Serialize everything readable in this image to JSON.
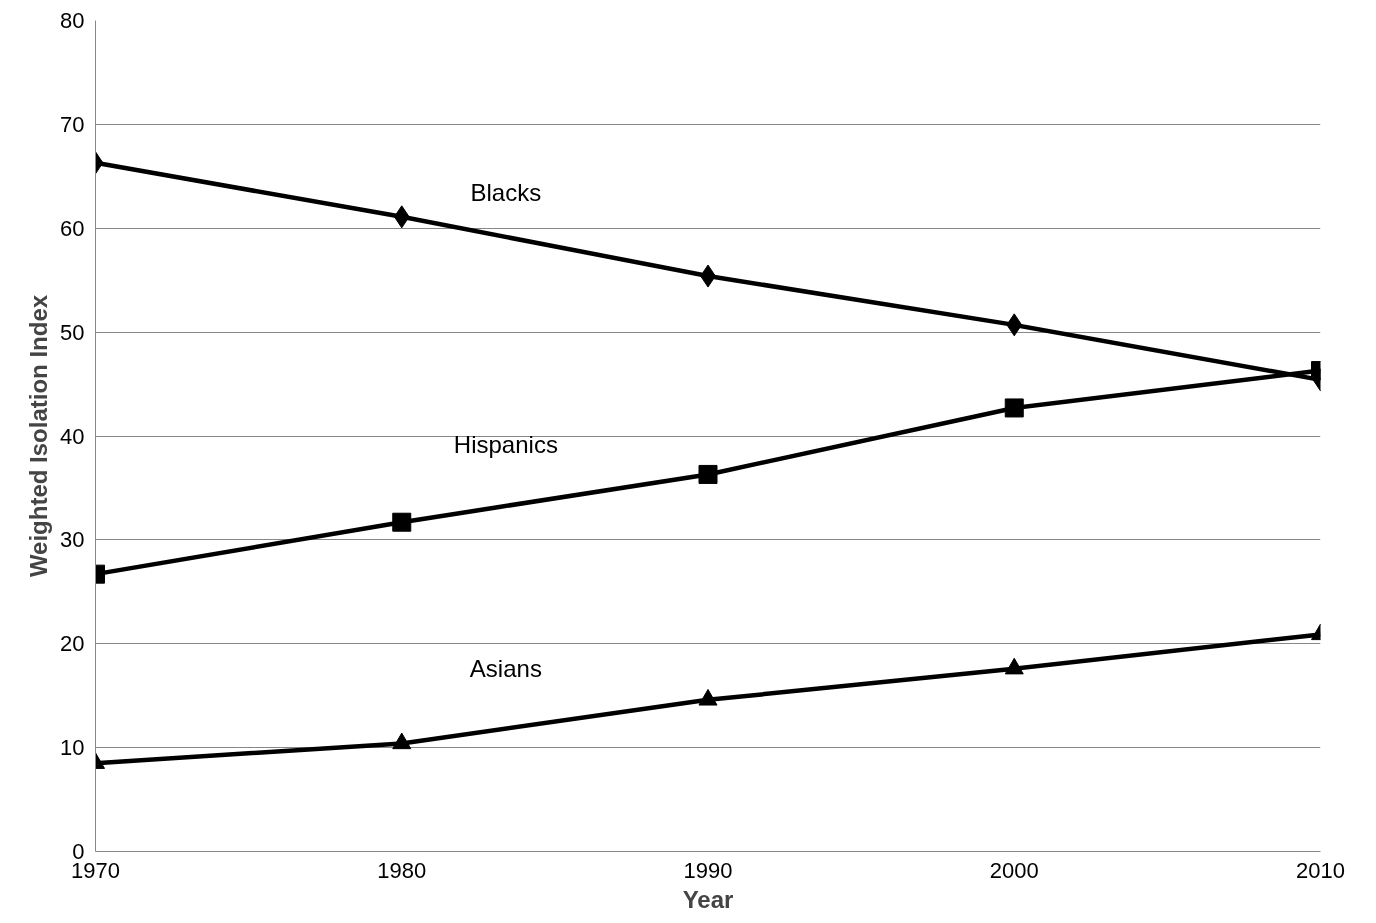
{
  "chart_data": {
    "type": "line",
    "xlabel": "Year",
    "ylabel": "Weighted Isolation Index",
    "x": [
      1970,
      1980,
      1990,
      2000,
      2010
    ],
    "series": [
      {
        "name": "Blacks",
        "color": "#000000",
        "marker": "diamond",
        "values": [
          66.3,
          61.1,
          55.4,
          50.7,
          45.4
        ]
      },
      {
        "name": "Hispanics",
        "color": "#000000",
        "marker": "square",
        "values": [
          26.7,
          31.7,
          36.3,
          42.7,
          46.3
        ]
      },
      {
        "name": "Asians",
        "color": "#000000",
        "marker": "triangle",
        "values": [
          8.5,
          10.4,
          14.6,
          17.6,
          20.9
        ]
      }
    ],
    "xlim": [
      1970,
      2010
    ],
    "xticks": [
      1970,
      1980,
      1990,
      2000,
      2010
    ],
    "ylim": [
      0,
      80
    ],
    "yticks": [
      0,
      10,
      20,
      30,
      40,
      50,
      60,
      70,
      80
    ],
    "grid": "y",
    "line_style": "solid"
  }
}
